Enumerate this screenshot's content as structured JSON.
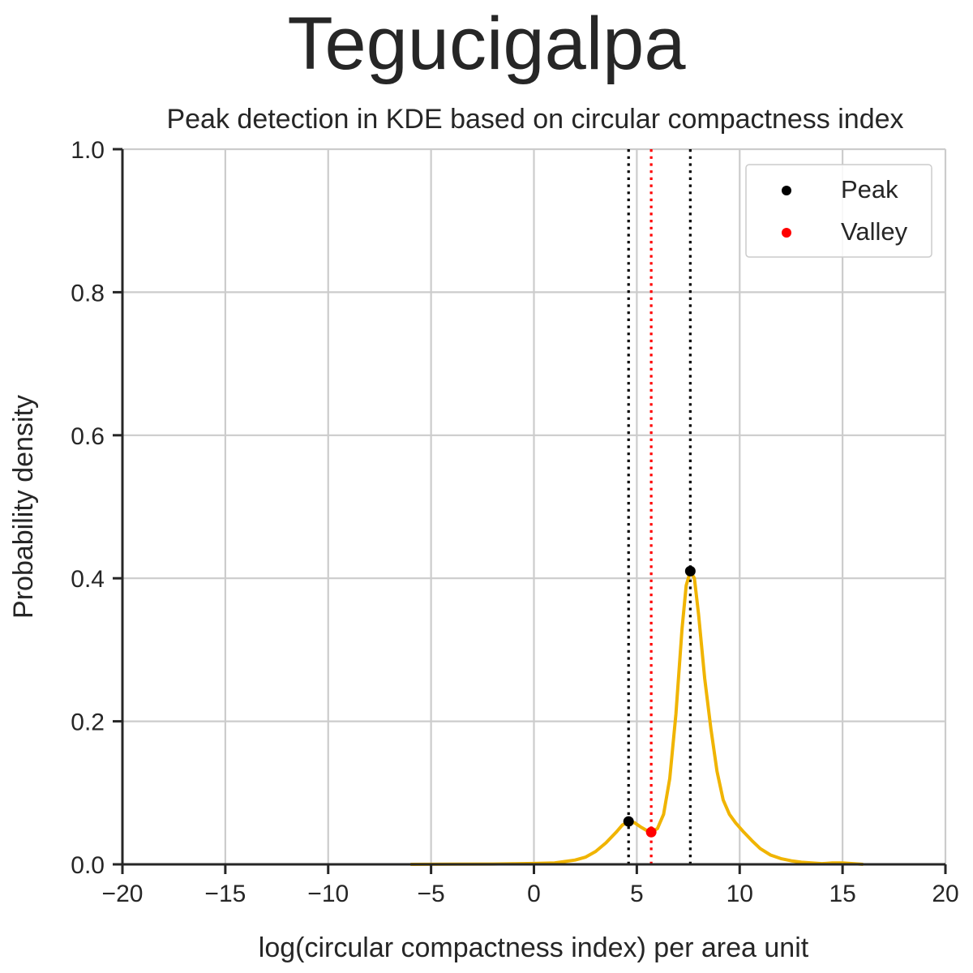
{
  "chart_data": {
    "type": "line",
    "suptitle": "Tegucigalpa",
    "title": "Peak detection in KDE based on circular compactness index",
    "xlabel": "log(circular compactness index) per area unit",
    "ylabel": "Probability density",
    "xlim": [
      -20,
      20
    ],
    "ylim": [
      0,
      1.0
    ],
    "xticks": [
      -20,
      -15,
      -10,
      -5,
      0,
      5,
      10,
      15,
      20
    ],
    "xtick_labels": [
      "−20",
      "−15",
      "−10",
      "−5",
      "0",
      "5",
      "10",
      "15",
      "20"
    ],
    "yticks": [
      0,
      0.2,
      0.4,
      0.6,
      0.8,
      1.0
    ],
    "ytick_labels": [
      "0.0",
      "0.2",
      "0.4",
      "0.6",
      "0.8",
      "1.0"
    ],
    "grid": true,
    "legend_position": "top-right",
    "series": [
      {
        "color": "#f0b400",
        "x": [
          -6.0,
          -4.0,
          -2.0,
          -1.0,
          0.0,
          1.0,
          1.5,
          2.0,
          2.5,
          3.0,
          3.5,
          4.0,
          4.3,
          4.6,
          4.9,
          5.2,
          5.5,
          5.7,
          6.0,
          6.3,
          6.6,
          6.9,
          7.2,
          7.4,
          7.6,
          7.8,
          8.0,
          8.3,
          8.6,
          8.9,
          9.2,
          9.5,
          9.8,
          10.2,
          10.6,
          11.0,
          11.5,
          12.0,
          12.5,
          13.0,
          13.5,
          14.0,
          14.5,
          15.0,
          15.5,
          16.0
        ],
        "y": [
          0.0,
          0.0003,
          0.0005,
          0.0008,
          0.0012,
          0.002,
          0.004,
          0.006,
          0.01,
          0.018,
          0.03,
          0.045,
          0.055,
          0.06,
          0.058,
          0.052,
          0.047,
          0.045,
          0.05,
          0.07,
          0.12,
          0.21,
          0.33,
          0.39,
          0.41,
          0.4,
          0.35,
          0.26,
          0.19,
          0.13,
          0.09,
          0.07,
          0.058,
          0.045,
          0.033,
          0.022,
          0.013,
          0.008,
          0.005,
          0.003,
          0.002,
          0.001,
          0.002,
          0.002,
          0.001,
          0.0
        ]
      }
    ],
    "peaks": {
      "label": "Peak",
      "color": "#000000",
      "x": [
        4.6,
        7.6
      ],
      "y": [
        0.06,
        0.41
      ]
    },
    "valleys": {
      "label": "Valley",
      "color": "#ff0000",
      "x": [
        5.7
      ],
      "y": [
        0.045
      ]
    },
    "vlines": [
      {
        "x": 4.6,
        "color": "#000000",
        "style": "dotted"
      },
      {
        "x": 5.7,
        "color": "#ff0000",
        "style": "dotted"
      },
      {
        "x": 7.6,
        "color": "#000000",
        "style": "dotted"
      }
    ]
  }
}
